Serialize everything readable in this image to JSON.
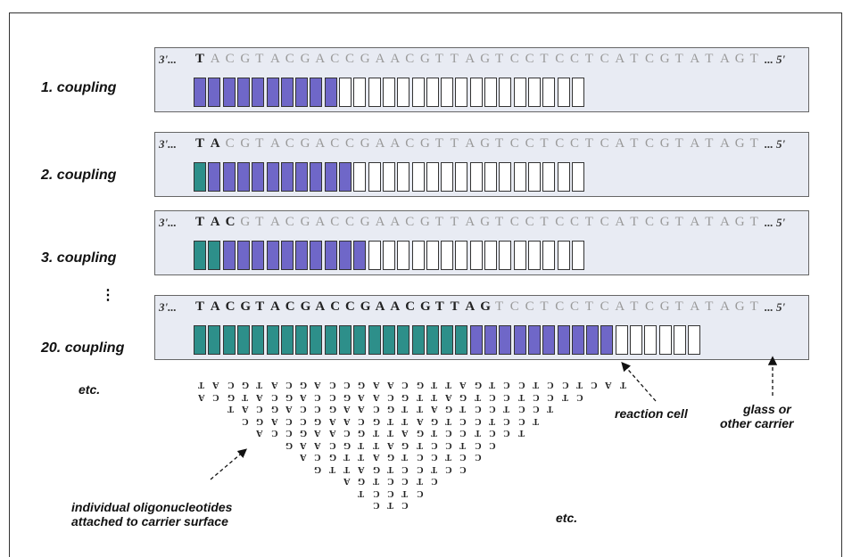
{
  "sequence": "TACGTACGACCGAACGTTAGTCCTCCTCATCGTATAGT",
  "prime_start": "3'...",
  "prime_end": "... 5'",
  "cell_count": 27,
  "rows": [
    {
      "label": "1. coupling",
      "bold_prefix": 1,
      "done": 0,
      "active": 10
    },
    {
      "label": "2. coupling",
      "bold_prefix": 2,
      "done": 1,
      "active": 10
    },
    {
      "label": "3. coupling",
      "bold_prefix": 3,
      "done": 2,
      "active": 10
    },
    {
      "label": "20. coupling",
      "bold_prefix": 20,
      "done": 19,
      "active": 10
    }
  ],
  "ellipsis_label": "⋮",
  "labels": {
    "etc_left": "etc.",
    "etc_bottom": "etc.",
    "reaction_cell": "reaction cell",
    "glass_line1": "glass or",
    "glass_line2": "other carrier",
    "oligo_line1": "individual oligonucleotides",
    "oligo_line2": "attached to carrier surface"
  },
  "colors": {
    "done": "#2d8f8a",
    "active": "#6f67c8",
    "panel": "#e8ebf3",
    "seq_bold": "#222222",
    "seq_faint": "#9a9a9a"
  }
}
